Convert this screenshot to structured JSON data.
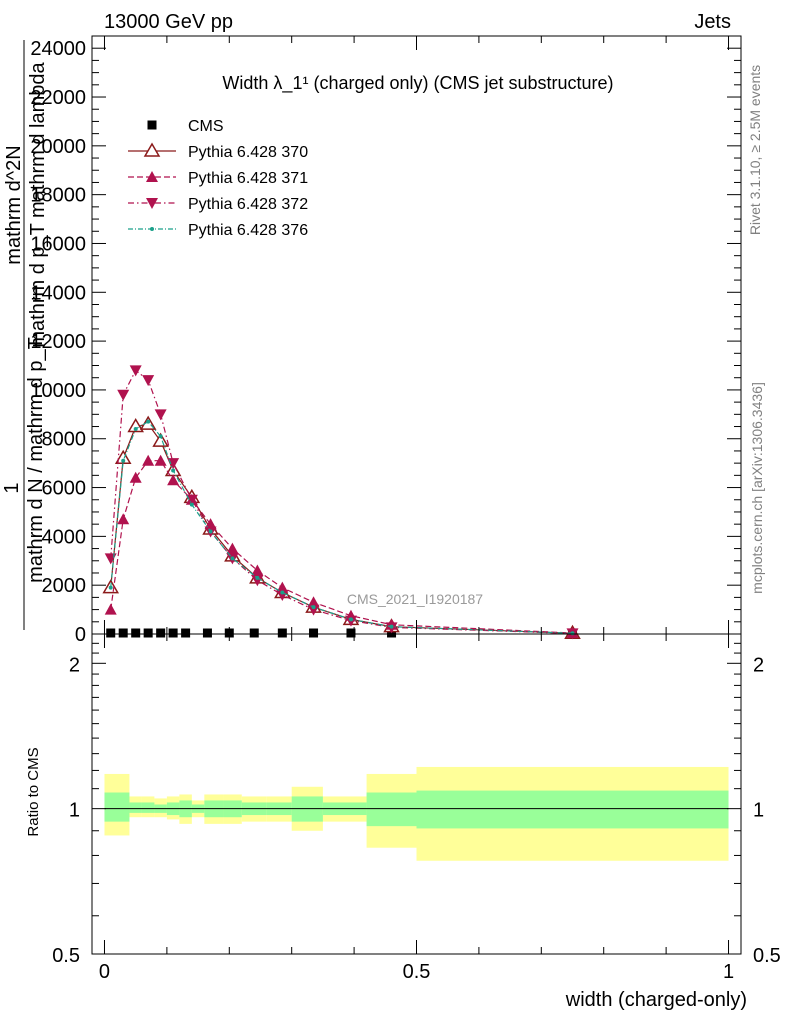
{
  "header": {
    "energy_label": "13000 GeV pp",
    "process_label": "Jets"
  },
  "side_labels": {
    "rivet": "Rivet 3.1.10, ≥ 2.5M events",
    "mcplots": "mcplots.cern.ch [arXiv:1306.3436]"
  },
  "chart_data": [
    {
      "type": "line",
      "title": "Width λ_1¹ (charged only) (CMS jet substructure)",
      "watermark": "CMS_2021_I1920187",
      "ylabel_lines": [
        "1",
        "mathrm d N / mathrm d p_T",
        "mathrm d^2N",
        "mathrm d p_T mathrm d lambda"
      ],
      "xlim": [
        -0.02,
        1.02
      ],
      "ylim": [
        0,
        24500
      ],
      "yticks": [
        0,
        2000,
        4000,
        6000,
        8000,
        10000,
        12000,
        14000,
        16000,
        18000,
        20000,
        22000,
        24000
      ],
      "ytick_labels": [
        "0",
        "2000",
        "4000",
        "6000",
        "8000",
        "10000",
        "12000",
        "14000",
        "16000",
        "18000",
        "20000",
        "22000",
        "24000"
      ],
      "legend_position": "top-left",
      "series": [
        {
          "name": "CMS",
          "color": "#000000",
          "marker": "square",
          "x": [
            0.01,
            0.03,
            0.05,
            0.07,
            0.09,
            0.11,
            0.13,
            0.165,
            0.2,
            0.24,
            0.285,
            0.335,
            0.395,
            0.46,
            0.75
          ],
          "y": [
            10,
            12,
            12,
            11,
            10,
            9,
            8,
            7,
            6,
            5,
            4,
            3,
            2,
            1,
            0
          ]
        },
        {
          "name": "Pythia 6.428 370",
          "color": "#8b1a1a",
          "marker": "triangle-up-open",
          "dash": "solid",
          "x": [
            0.01,
            0.03,
            0.05,
            0.07,
            0.09,
            0.11,
            0.14,
            0.17,
            0.205,
            0.245,
            0.285,
            0.335,
            0.395,
            0.46,
            0.75
          ],
          "y": [
            1900,
            7200,
            8500,
            8600,
            7900,
            6700,
            5600,
            4300,
            3200,
            2300,
            1700,
            1100,
            600,
            300,
            30
          ]
        },
        {
          "name": "Pythia 6.428 371",
          "color": "#b0124e",
          "marker": "triangle-up",
          "dash": "6,3",
          "x": [
            0.01,
            0.03,
            0.05,
            0.07,
            0.09,
            0.11,
            0.14,
            0.17,
            0.205,
            0.245,
            0.285,
            0.335,
            0.395,
            0.46,
            0.75
          ],
          "y": [
            1000,
            4700,
            6400,
            7100,
            7100,
            6300,
            5500,
            4500,
            3500,
            2600,
            1900,
            1300,
            750,
            380,
            40
          ]
        },
        {
          "name": "Pythia 6.428 372",
          "color": "#b0124e",
          "marker": "triangle-down",
          "dash": "6,3,1.5,3",
          "x": [
            0.01,
            0.03,
            0.05,
            0.07,
            0.09,
            0.11,
            0.14,
            0.17,
            0.205,
            0.245,
            0.285,
            0.335,
            0.395,
            0.46,
            0.75
          ],
          "y": [
            3100,
            9800,
            10800,
            10400,
            9000,
            7000,
            5500,
            4200,
            3100,
            2200,
            1600,
            1000,
            550,
            270,
            25
          ]
        },
        {
          "name": "Pythia 6.428 376",
          "color": "#1aa08a",
          "marker": "dot",
          "dash": "5,2,1,2",
          "x": [
            0.01,
            0.03,
            0.05,
            0.07,
            0.09,
            0.11,
            0.14,
            0.17,
            0.205,
            0.245,
            0.285,
            0.335,
            0.395,
            0.46,
            0.75
          ],
          "y": [
            1900,
            7100,
            8400,
            8700,
            8100,
            6700,
            5300,
            4200,
            3100,
            2300,
            1700,
            1100,
            600,
            300,
            30
          ]
        }
      ]
    },
    {
      "type": "area",
      "ylabel": "Ratio to CMS",
      "xlabel": "width (charged-only)",
      "xlim": [
        -0.02,
        1.02
      ],
      "ylim": [
        0.5,
        2.3
      ],
      "yticks": [
        0.5,
        1,
        2
      ],
      "ytick_labels": [
        "0.5",
        "1",
        "2"
      ],
      "xticks": [
        0,
        0.5,
        1
      ],
      "xtick_labels": [
        "0",
        "0.5",
        "1"
      ],
      "bands": {
        "bin_edges": [
          0,
          0.04,
          0.06,
          0.08,
          0.1,
          0.12,
          0.14,
          0.16,
          0.19,
          0.22,
          0.26,
          0.3,
          0.35,
          0.42,
          0.5,
          1.0
        ],
        "inner_up": [
          1.08,
          1.03,
          1.03,
          1.02,
          1.03,
          1.04,
          1.02,
          1.04,
          1.04,
          1.03,
          1.03,
          1.06,
          1.03,
          1.08,
          1.09
        ],
        "inner_low": [
          0.94,
          0.98,
          0.98,
          0.98,
          0.97,
          0.96,
          0.98,
          0.96,
          0.96,
          0.97,
          0.97,
          0.94,
          0.97,
          0.92,
          0.91
        ],
        "outer_up": [
          1.18,
          1.06,
          1.06,
          1.05,
          1.06,
          1.07,
          1.04,
          1.07,
          1.07,
          1.06,
          1.06,
          1.11,
          1.06,
          1.18,
          1.22
        ],
        "outer_low": [
          0.88,
          0.96,
          0.96,
          0.96,
          0.95,
          0.93,
          0.96,
          0.93,
          0.93,
          0.94,
          0.94,
          0.9,
          0.94,
          0.83,
          0.78
        ],
        "inner_color": "#99ff99",
        "outer_color": "#ffff99"
      },
      "reference_line": 1
    }
  ]
}
